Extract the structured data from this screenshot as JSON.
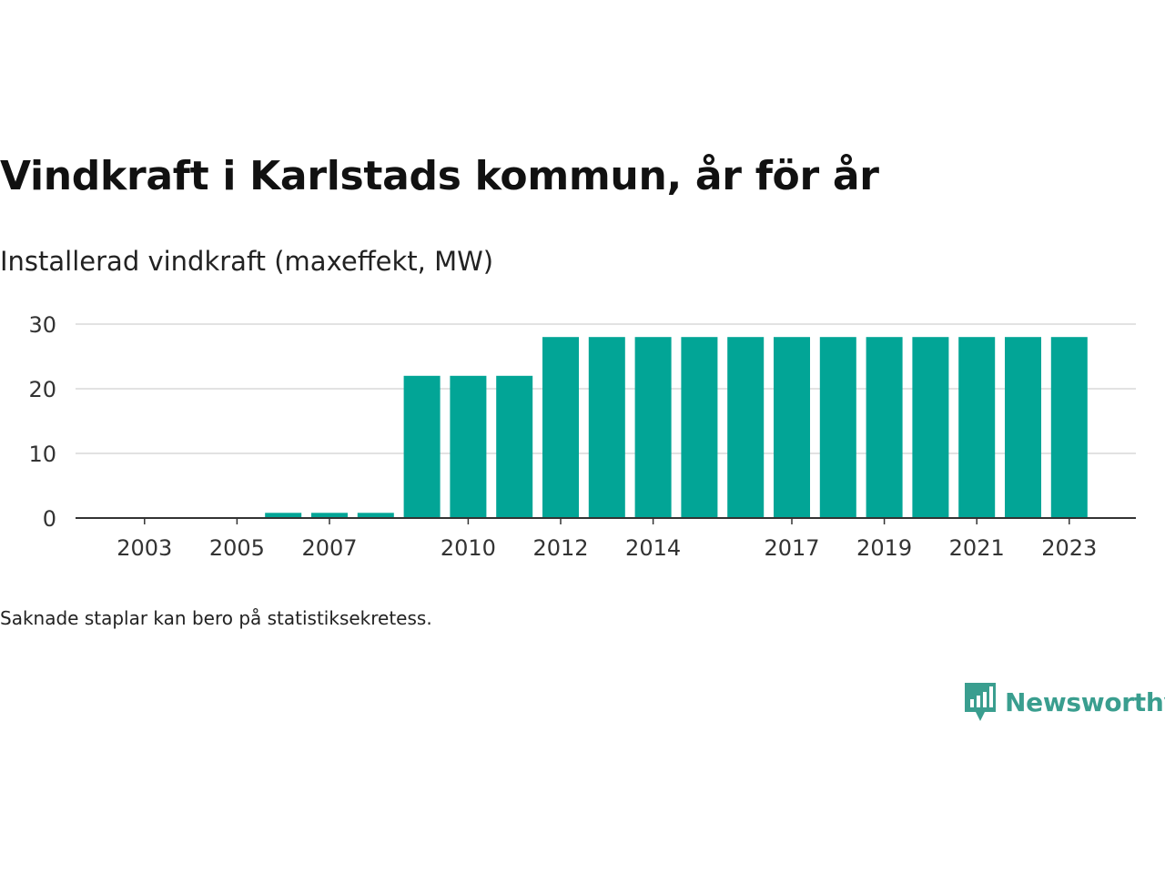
{
  "title": "Vindkraft i Karlstads kommun, år för år",
  "subtitle": "Installerad vindkraft (maxeffekt, MW)",
  "note": "Saknade staplar kan bero på statistiksekretess.",
  "brand": {
    "name": "Newsworthy",
    "icon": "newsworthy-logo-icon",
    "color": "#3a9e8f"
  },
  "colors": {
    "bar": "#02a596",
    "grid": "#d9d9d9",
    "axis": "#333333"
  },
  "chart_data": {
    "type": "bar",
    "title": "Vindkraft i Karlstads kommun, år för år",
    "ylabel": "Installerad vindkraft (maxeffekt, MW)",
    "xlabel": "",
    "categories": [
      "2002",
      "2003",
      "2004",
      "2005",
      "2006",
      "2007",
      "2008",
      "2009",
      "2010",
      "2011",
      "2012",
      "2013",
      "2014",
      "2015",
      "2016",
      "2017",
      "2018",
      "2019",
      "2020",
      "2021",
      "2022",
      "2023"
    ],
    "values": [
      0,
      0,
      0,
      0,
      0.8,
      0.8,
      0.8,
      22,
      22,
      22,
      28,
      28,
      28,
      28,
      28,
      28,
      28,
      28,
      28,
      28,
      28,
      28
    ],
    "x_tick_labels": [
      "2003",
      "2005",
      "2007",
      "2010",
      "2012",
      "2014",
      "2017",
      "2019",
      "2021",
      "2023"
    ],
    "y_ticks": [
      0,
      10,
      20,
      30
    ],
    "ylim": [
      0,
      30
    ],
    "grid": true,
    "legend": "none"
  }
}
